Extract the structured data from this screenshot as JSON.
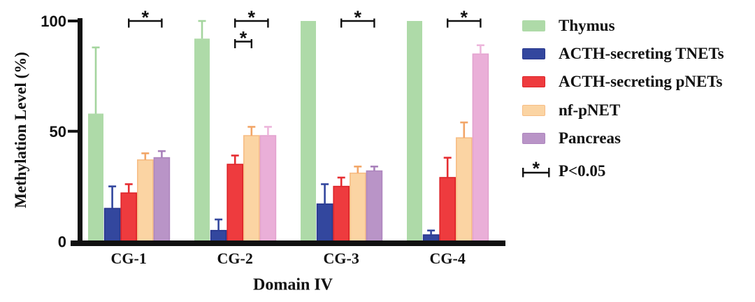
{
  "style": {
    "background": "#ffffff",
    "text_color": "#111111",
    "axis_color": "#111111"
  },
  "chart_data": {
    "type": "bar",
    "title": "",
    "xlabel": "Domain IV",
    "ylabel": "Methylation Level (%)",
    "ylim": [
      0,
      100
    ],
    "yticks": [
      0,
      50,
      100
    ],
    "grid": false,
    "legend_position": "right",
    "categories": [
      "CG-1",
      "CG-2",
      "CG-3",
      "CG-4"
    ],
    "series": [
      {
        "name": "Thymus",
        "values": [
          58,
          92,
          100,
          100
        ],
        "errors": [
          30,
          8,
          0,
          0
        ],
        "fill": "#aedaa8",
        "edge": null,
        "err_color": "#a4d59e"
      },
      {
        "name": "ACTH-secreting TNETs",
        "values": [
          15,
          5,
          17,
          3
        ],
        "errors": [
          10,
          5,
          9,
          2
        ],
        "fill": "#33479e",
        "edge": "#27368c",
        "err_color": "#33479e"
      },
      {
        "name": "ACTH-secreting pNETs",
        "values": [
          22,
          35,
          25,
          29
        ],
        "errors": [
          4,
          4,
          4,
          9
        ],
        "fill": "#ee3b3e",
        "edge": "#dd2328",
        "err_color": "#e62d31"
      },
      {
        "name": "nf-pNET",
        "values": [
          37,
          48,
          31,
          47
        ],
        "errors": [
          3,
          4,
          3,
          7
        ],
        "fill": "#fbd4a3",
        "edge": "#f7bd85",
        "err_color": "#f2a668"
      },
      {
        "name": "Pancreas",
        "values": [
          38,
          48,
          32,
          85
        ],
        "errors": [
          3,
          4,
          2,
          4
        ],
        "fill": [
          "#b994c7",
          "#eaafd8",
          "#b994c7",
          "#eaafd8"
        ],
        "edge": [
          "#ae86be",
          "#e3a2cf",
          "#ae86be",
          "#e3a2cf"
        ],
        "err_color": [
          "#a981bb",
          "#edb6dc",
          "#a981bb",
          "#edb6dc"
        ]
      }
    ],
    "significance_brackets": [
      {
        "category": "CG-1",
        "from": "ACTH-secreting pNETs",
        "to": "Pancreas",
        "symbol": "*",
        "tier": 0
      },
      {
        "category": "CG-2",
        "from": "ACTH-secreting pNETs",
        "to": "Pancreas",
        "symbol": "*",
        "tier": 0
      },
      {
        "category": "CG-2",
        "from": "ACTH-secreting pNETs",
        "to": "nf-pNET",
        "symbol": "*",
        "tier": 1
      },
      {
        "category": "CG-3",
        "from": "ACTH-secreting pNETs",
        "to": "Pancreas",
        "symbol": "*",
        "tier": 0
      },
      {
        "category": "CG-4",
        "from": "ACTH-secreting pNETs",
        "to": "Pancreas",
        "symbol": "*",
        "tier": 0
      }
    ],
    "legend_note": {
      "symbol": "*",
      "label": "P<0.05"
    }
  }
}
